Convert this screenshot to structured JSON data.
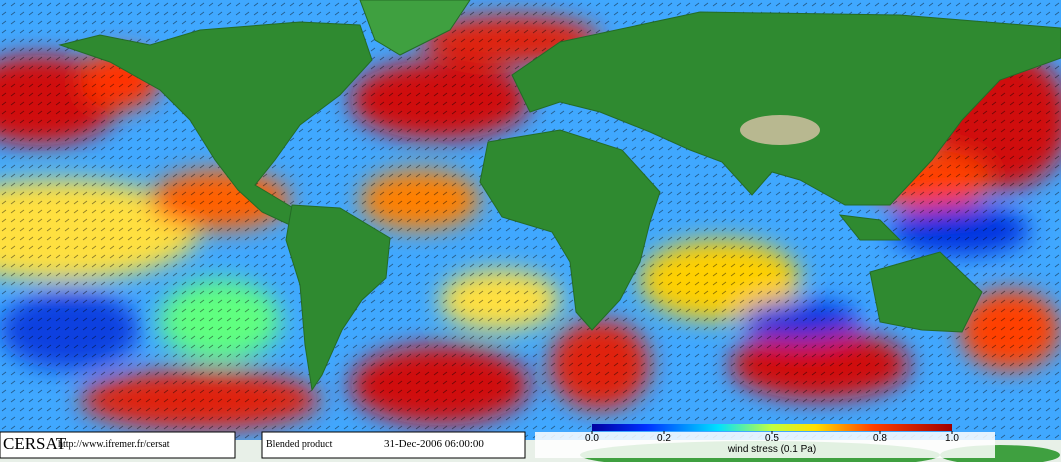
{
  "footer": {
    "logo": "CERSAT",
    "url": "http://www.ifremer.fr/cersat",
    "product": "Blended product",
    "datetime": "31-Dec-2006 06:00:00"
  },
  "colorbar": {
    "label": "wind stress (0.1 Pa)",
    "lim": [
      0,
      1
    ],
    "ticks": [
      {
        "value": 0,
        "label": "0.0"
      },
      0.2,
      0.5,
      0.8,
      {
        "value": 1,
        "label": "1.0"
      }
    ]
  }
}
